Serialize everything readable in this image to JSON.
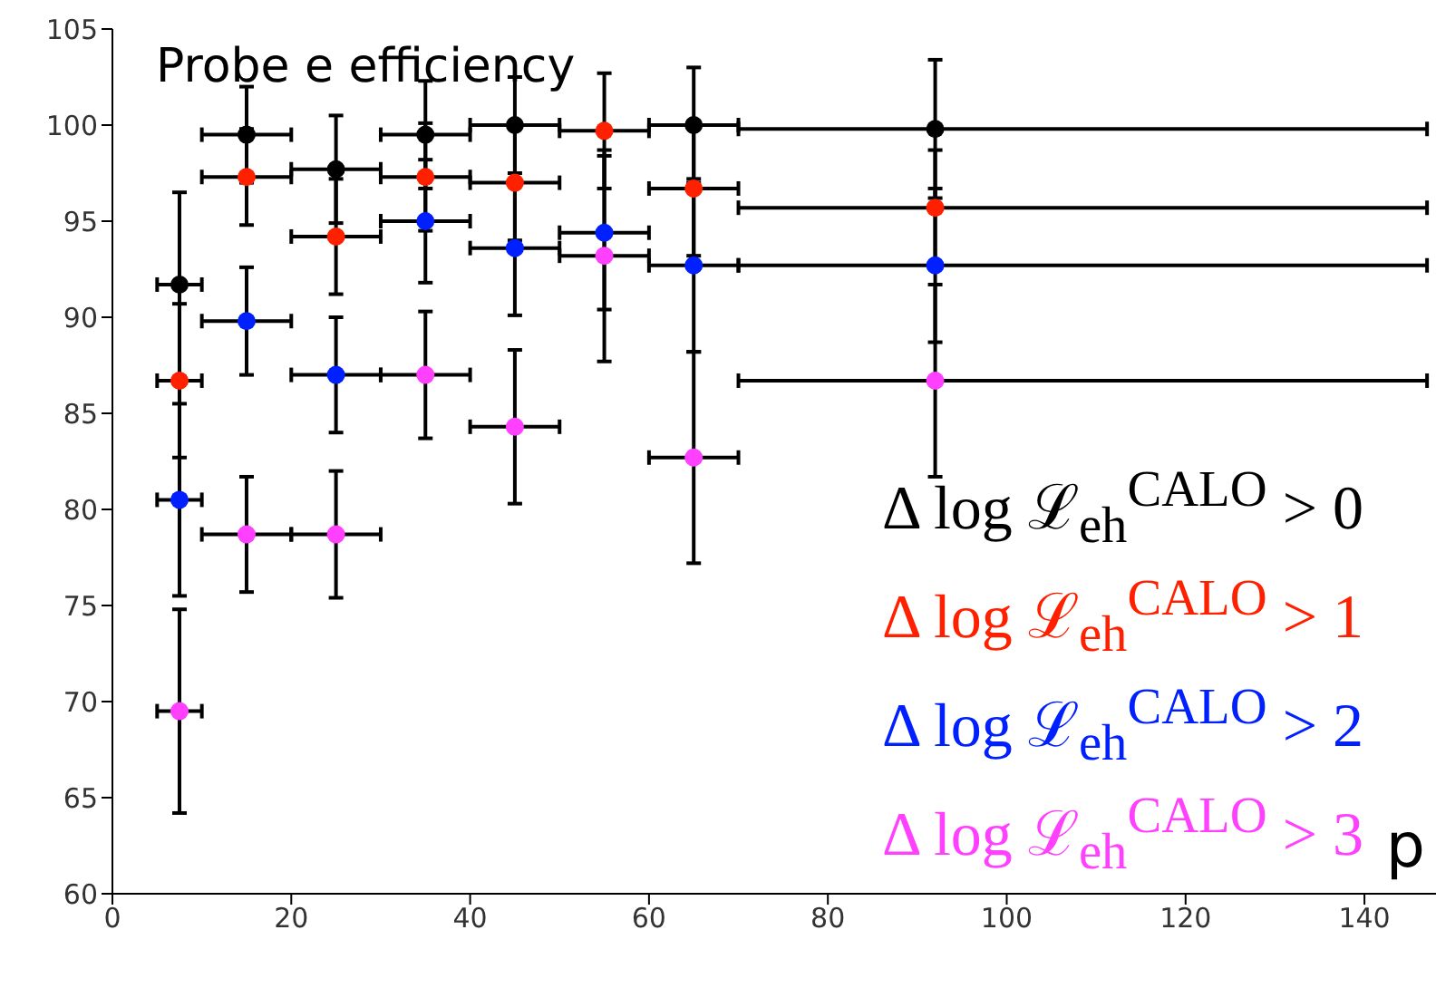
{
  "chart_data": {
    "type": "scatter",
    "title": "Probe e efficiency",
    "xlabel": "p",
    "xlim": [
      0,
      148
    ],
    "ylim": [
      60,
      105
    ],
    "xticks": [
      0,
      20,
      40,
      60,
      80,
      100,
      120,
      140
    ],
    "yticks": [
      60,
      65,
      70,
      75,
      80,
      85,
      90,
      95,
      100,
      105
    ],
    "marker": "circle",
    "legend": "bottom right",
    "grid": false,
    "x": [
      7.5,
      15,
      25,
      35,
      45,
      55,
      65,
      92
    ],
    "series": [
      {
        "name": "Δ log ℒ$_{eh}$$^{CALO}$ > 0",
        "color": "#000000",
        "values": [
          91.7,
          99.5,
          97.7,
          99.5,
          100.0,
          null,
          100.0,
          99.8
        ],
        "errors": [
          4.8,
          2.5,
          2.8,
          2.8,
          2.5,
          null,
          3,
          3.6
        ],
        "xerrors": [
          2.5,
          5,
          5,
          5,
          5,
          null,
          5,
          [
            70,
            147
          ]
        ]
      },
      {
        "name": "Δ log ℒ$_{eh}$$^{CALO}$ > 1",
        "color": "#ff2000",
        "values": [
          86.7,
          97.3,
          94.2,
          97.3,
          97.0,
          99.7,
          96.7,
          95.7
        ],
        "errors": [
          4,
          2.5,
          3,
          2.8,
          3,
          3,
          3.5,
          3
        ],
        "xerrors": [
          2.5,
          5,
          5,
          5,
          5,
          5,
          5,
          [
            70,
            147
          ]
        ]
      },
      {
        "name": "Δ log ℒ$_{eh}$$^{CALO}$ > 2",
        "color": "#0020ff",
        "values": [
          80.5,
          89.8,
          87.0,
          95.0,
          93.6,
          94.4,
          92.7,
          92.7
        ],
        "errors": [
          5,
          2.8,
          3,
          3.2,
          3.5,
          4,
          4.5,
          4
        ],
        "xerrors": [
          2.5,
          5,
          5,
          5,
          5,
          5,
          5,
          [
            70,
            147
          ]
        ]
      },
      {
        "name": "Δ log ℒ$_{eh}$$^{CALO}$ > 3",
        "color": "#ff40ff",
        "values": [
          69.5,
          78.7,
          78.7,
          87.0,
          84.3,
          93.2,
          82.7,
          86.7
        ],
        "errors": [
          5.3,
          3,
          3.3,
          3.3,
          4,
          5.5,
          5.5,
          5
        ],
        "xerrors": [
          2.5,
          5,
          5,
          5,
          5,
          5,
          5,
          [
            70,
            147
          ]
        ]
      }
    ]
  }
}
